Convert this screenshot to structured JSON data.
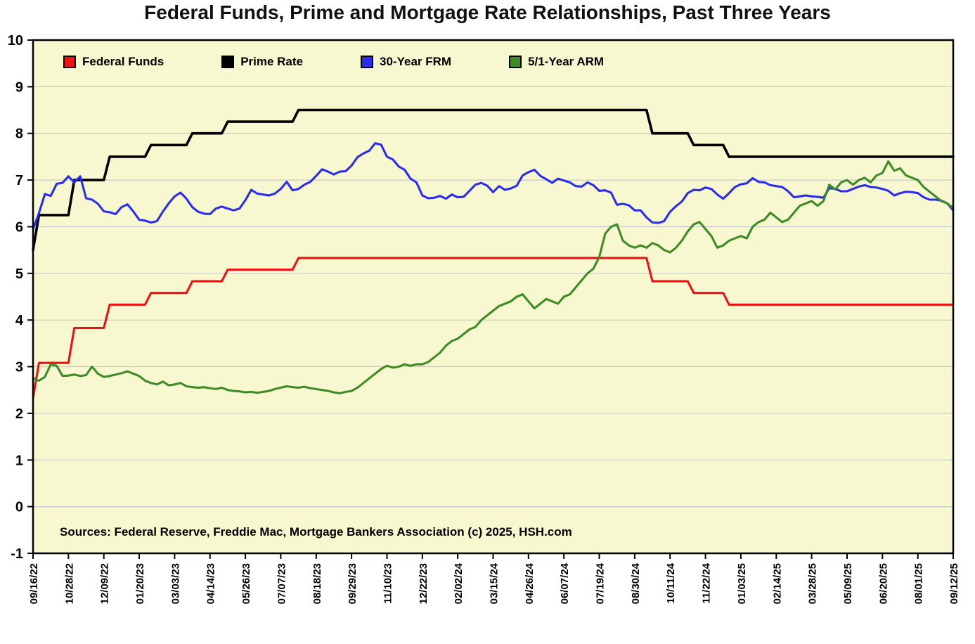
{
  "title": "Federal Funds, Prime and Mortgage Rate Relationships, Past Three Years",
  "source_note": "Sources: Federal Reserve, Freddie Mac, Mortgage Bankers Association (c) 2025, HSH.com",
  "colors": {
    "plot_bg": "#f8f8d0",
    "outer_bg": "#ffffff",
    "grid": "#c9c9c9",
    "axis": "#000000",
    "federal_funds": "#ee1111",
    "prime_rate": "#000000",
    "frm_30": "#2c2cf0",
    "arm_51": "#3f8b27"
  },
  "legend": [
    {
      "label": "Federal Funds",
      "color": "#ee1111"
    },
    {
      "label": "Prime Rate",
      "color": "#000000"
    },
    {
      "label": "30-Year FRM",
      "color": "#2c2cf0"
    },
    {
      "label": "5/1-Year ARM",
      "color": "#3f8b27"
    }
  ],
  "chart_data": {
    "type": "line",
    "title": "Federal Funds, Prime and Mortgage Rate Relationships, Past Three Years",
    "xlabel": "",
    "ylabel": "",
    "ylim": [
      -1,
      10
    ],
    "yticks": [
      -1,
      0,
      1,
      2,
      3,
      4,
      5,
      6,
      7,
      8,
      9,
      10
    ],
    "grid": "horizontal",
    "legend_position": "top-inside",
    "x_unit": "weekly",
    "x_tick_interval_weeks": 6,
    "x_tick_labels": [
      "09/16/22",
      "10/28/22",
      "12/09/22",
      "01/20/23",
      "03/03/23",
      "04/14/23",
      "05/26/23",
      "07/07/23",
      "08/18/23",
      "09/29/23",
      "11/10/23",
      "12/22/23",
      "02/02/24",
      "03/15/24",
      "04/26/24",
      "06/07/24",
      "07/19/24",
      "08/30/24",
      "10/11/24",
      "11/22/24",
      "01/03/25",
      "02/14/25",
      "03/28/25",
      "05/09/25",
      "06/20/25",
      "08/01/25",
      "09/12/25"
    ],
    "series": [
      {
        "name": "Federal Funds",
        "color": "#ee1111",
        "values": [
          2.33,
          3.08,
          3.08,
          3.08,
          3.08,
          3.08,
          3.08,
          3.83,
          3.83,
          3.83,
          3.83,
          3.83,
          3.83,
          4.33,
          4.33,
          4.33,
          4.33,
          4.33,
          4.33,
          4.33,
          4.58,
          4.58,
          4.58,
          4.58,
          4.58,
          4.58,
          4.58,
          4.83,
          4.83,
          4.83,
          4.83,
          4.83,
          4.83,
          5.08,
          5.08,
          5.08,
          5.08,
          5.08,
          5.08,
          5.08,
          5.08,
          5.08,
          5.08,
          5.08,
          5.08,
          5.33,
          5.33,
          5.33,
          5.33,
          5.33,
          5.33,
          5.33,
          5.33,
          5.33,
          5.33,
          5.33,
          5.33,
          5.33,
          5.33,
          5.33,
          5.33,
          5.33,
          5.33,
          5.33,
          5.33,
          5.33,
          5.33,
          5.33,
          5.33,
          5.33,
          5.33,
          5.33,
          5.33,
          5.33,
          5.33,
          5.33,
          5.33,
          5.33,
          5.33,
          5.33,
          5.33,
          5.33,
          5.33,
          5.33,
          5.33,
          5.33,
          5.33,
          5.33,
          5.33,
          5.33,
          5.33,
          5.33,
          5.33,
          5.33,
          5.33,
          5.33,
          5.33,
          5.33,
          5.33,
          5.33,
          5.33,
          5.33,
          5.33,
          5.33,
          5.33,
          4.83,
          4.83,
          4.83,
          4.83,
          4.83,
          4.83,
          4.83,
          4.58,
          4.58,
          4.58,
          4.58,
          4.58,
          4.58,
          4.33,
          4.33,
          4.33,
          4.33,
          4.33,
          4.33,
          4.33,
          4.33,
          4.33,
          4.33,
          4.33,
          4.33,
          4.33,
          4.33,
          4.33,
          4.33,
          4.33,
          4.33,
          4.33,
          4.33,
          4.33,
          4.33,
          4.33,
          4.33,
          4.33,
          4.33,
          4.33,
          4.33,
          4.33,
          4.33,
          4.33,
          4.33,
          4.33,
          4.33,
          4.33,
          4.33,
          4.33,
          4.33,
          4.33
        ]
      },
      {
        "name": "Prime Rate",
        "color": "#000000",
        "values": [
          5.5,
          6.25,
          6.25,
          6.25,
          6.25,
          6.25,
          6.25,
          7.0,
          7.0,
          7.0,
          7.0,
          7.0,
          7.0,
          7.5,
          7.5,
          7.5,
          7.5,
          7.5,
          7.5,
          7.5,
          7.75,
          7.75,
          7.75,
          7.75,
          7.75,
          7.75,
          7.75,
          8.0,
          8.0,
          8.0,
          8.0,
          8.0,
          8.0,
          8.25,
          8.25,
          8.25,
          8.25,
          8.25,
          8.25,
          8.25,
          8.25,
          8.25,
          8.25,
          8.25,
          8.25,
          8.5,
          8.5,
          8.5,
          8.5,
          8.5,
          8.5,
          8.5,
          8.5,
          8.5,
          8.5,
          8.5,
          8.5,
          8.5,
          8.5,
          8.5,
          8.5,
          8.5,
          8.5,
          8.5,
          8.5,
          8.5,
          8.5,
          8.5,
          8.5,
          8.5,
          8.5,
          8.5,
          8.5,
          8.5,
          8.5,
          8.5,
          8.5,
          8.5,
          8.5,
          8.5,
          8.5,
          8.5,
          8.5,
          8.5,
          8.5,
          8.5,
          8.5,
          8.5,
          8.5,
          8.5,
          8.5,
          8.5,
          8.5,
          8.5,
          8.5,
          8.5,
          8.5,
          8.5,
          8.5,
          8.5,
          8.5,
          8.5,
          8.5,
          8.5,
          8.5,
          8.0,
          8.0,
          8.0,
          8.0,
          8.0,
          8.0,
          8.0,
          7.75,
          7.75,
          7.75,
          7.75,
          7.75,
          7.75,
          7.5,
          7.5,
          7.5,
          7.5,
          7.5,
          7.5,
          7.5,
          7.5,
          7.5,
          7.5,
          7.5,
          7.5,
          7.5,
          7.5,
          7.5,
          7.5,
          7.5,
          7.5,
          7.5,
          7.5,
          7.5,
          7.5,
          7.5,
          7.5,
          7.5,
          7.5,
          7.5,
          7.5,
          7.5,
          7.5,
          7.5,
          7.5,
          7.5,
          7.5,
          7.5,
          7.5,
          7.5,
          7.5,
          7.5
        ]
      },
      {
        "name": "30-Year FRM",
        "color": "#2c2cf0",
        "values": [
          5.95,
          6.29,
          6.7,
          6.66,
          6.92,
          6.94,
          7.08,
          6.95,
          7.08,
          6.61,
          6.58,
          6.49,
          6.33,
          6.31,
          6.27,
          6.42,
          6.48,
          6.33,
          6.15,
          6.13,
          6.09,
          6.12,
          6.32,
          6.5,
          6.65,
          6.73,
          6.6,
          6.42,
          6.32,
          6.28,
          6.27,
          6.39,
          6.43,
          6.39,
          6.35,
          6.39,
          6.57,
          6.79,
          6.71,
          6.69,
          6.67,
          6.71,
          6.81,
          6.96,
          6.78,
          6.81,
          6.9,
          6.96,
          7.09,
          7.23,
          7.18,
          7.12,
          7.18,
          7.19,
          7.31,
          7.49,
          7.57,
          7.63,
          7.79,
          7.76,
          7.5,
          7.44,
          7.29,
          7.22,
          7.03,
          6.95,
          6.67,
          6.61,
          6.62,
          6.66,
          6.6,
          6.69,
          6.63,
          6.64,
          6.77,
          6.9,
          6.94,
          6.88,
          6.74,
          6.87,
          6.79,
          6.82,
          6.88,
          7.1,
          7.17,
          7.22,
          7.09,
          7.02,
          6.94,
          7.03,
          6.99,
          6.95,
          6.87,
          6.86,
          6.95,
          6.89,
          6.77,
          6.78,
          6.73,
          6.47,
          6.49,
          6.46,
          6.35,
          6.35,
          6.2,
          6.09,
          6.08,
          6.12,
          6.32,
          6.44,
          6.54,
          6.72,
          6.79,
          6.78,
          6.84,
          6.81,
          6.69,
          6.6,
          6.72,
          6.85,
          6.91,
          6.93,
          7.04,
          6.96,
          6.95,
          6.89,
          6.87,
          6.85,
          6.76,
          6.63,
          6.65,
          6.67,
          6.65,
          6.64,
          6.62,
          6.83,
          6.81,
          6.76,
          6.76,
          6.81,
          6.86,
          6.89,
          6.85,
          6.84,
          6.81,
          6.77,
          6.67,
          6.72,
          6.75,
          6.74,
          6.72,
          6.63,
          6.58,
          6.58,
          6.56,
          6.5,
          6.35
        ]
      },
      {
        "name": "5/1-Year ARM",
        "color": "#3f8b27",
        "values": [
          2.75,
          2.7,
          2.78,
          3.05,
          3.02,
          2.8,
          2.81,
          2.83,
          2.8,
          2.82,
          3.0,
          2.85,
          2.78,
          2.8,
          2.83,
          2.86,
          2.9,
          2.85,
          2.8,
          2.7,
          2.65,
          2.62,
          2.68,
          2.6,
          2.62,
          2.65,
          2.58,
          2.56,
          2.55,
          2.56,
          2.54,
          2.52,
          2.55,
          2.5,
          2.48,
          2.47,
          2.45,
          2.46,
          2.44,
          2.46,
          2.48,
          2.52,
          2.55,
          2.58,
          2.56,
          2.55,
          2.57,
          2.54,
          2.52,
          2.5,
          2.48,
          2.45,
          2.43,
          2.46,
          2.48,
          2.55,
          2.65,
          2.75,
          2.85,
          2.95,
          3.02,
          2.98,
          3.0,
          3.05,
          3.02,
          3.05,
          3.05,
          3.1,
          3.2,
          3.3,
          3.45,
          3.55,
          3.6,
          3.7,
          3.8,
          3.85,
          4.0,
          4.1,
          4.2,
          4.3,
          4.35,
          4.4,
          4.5,
          4.55,
          4.4,
          4.25,
          4.35,
          4.45,
          4.4,
          4.35,
          4.5,
          4.55,
          4.7,
          4.85,
          5.0,
          5.1,
          5.35,
          5.85,
          6.0,
          6.05,
          5.7,
          5.6,
          5.55,
          5.6,
          5.55,
          5.65,
          5.6,
          5.5,
          5.45,
          5.55,
          5.7,
          5.9,
          6.05,
          6.1,
          5.95,
          5.8,
          5.55,
          5.6,
          5.7,
          5.75,
          5.8,
          5.75,
          6.0,
          6.1,
          6.15,
          6.3,
          6.2,
          6.1,
          6.15,
          6.3,
          6.45,
          6.5,
          6.55,
          6.45,
          6.55,
          6.9,
          6.8,
          6.95,
          7.0,
          6.9,
          7.0,
          7.05,
          6.95,
          7.1,
          7.15,
          7.4,
          7.2,
          7.25,
          7.1,
          7.05,
          7.0,
          6.85,
          6.75,
          6.65,
          6.55,
          6.5,
          6.4
        ]
      }
    ]
  }
}
